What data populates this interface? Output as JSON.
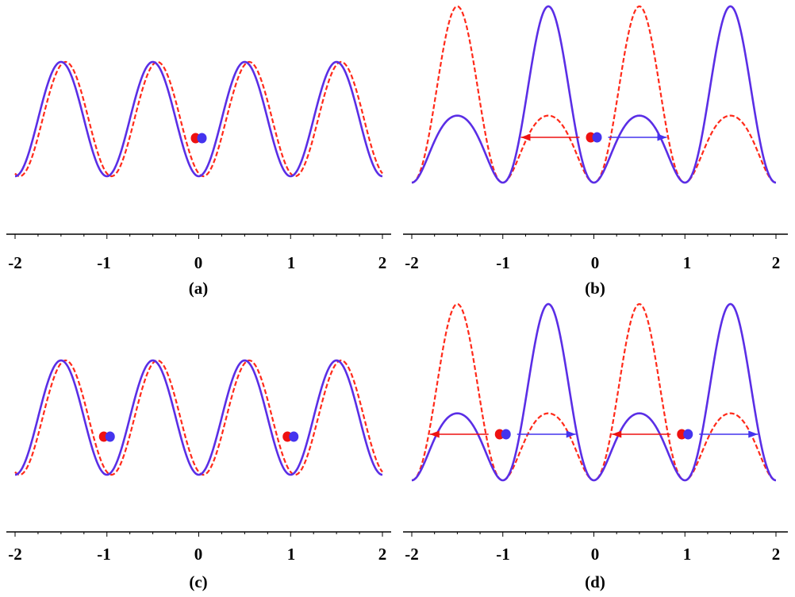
{
  "colors": {
    "blue": "#5a2ee6",
    "red": "#ff2a1a",
    "red_atom": "#ee1111",
    "blue_atom": "#4433ee",
    "axis": "#000000"
  },
  "x_ticks": [
    "-2",
    "-1",
    "0",
    "1",
    "2"
  ],
  "x_tick_values": [
    -2,
    -1,
    0,
    1,
    2
  ],
  "x_range": [
    -2,
    2
  ],
  "panels": [
    {
      "id": "a",
      "label": "(a)",
      "type": "symmetric",
      "red_shift": 0.05,
      "atoms": [
        0
      ],
      "arrows": false
    },
    {
      "id": "b",
      "label": "(b)",
      "type": "asymmetric",
      "atoms": [
        0
      ],
      "arrows": true
    },
    {
      "id": "c",
      "label": "(c)",
      "type": "symmetric",
      "red_shift": 0.05,
      "atoms": [
        -1,
        1
      ],
      "arrows": false
    },
    {
      "id": "d",
      "label": "(d)",
      "type": "asymmetric",
      "atoms": [
        -1,
        1
      ],
      "arrows": true
    }
  ]
}
